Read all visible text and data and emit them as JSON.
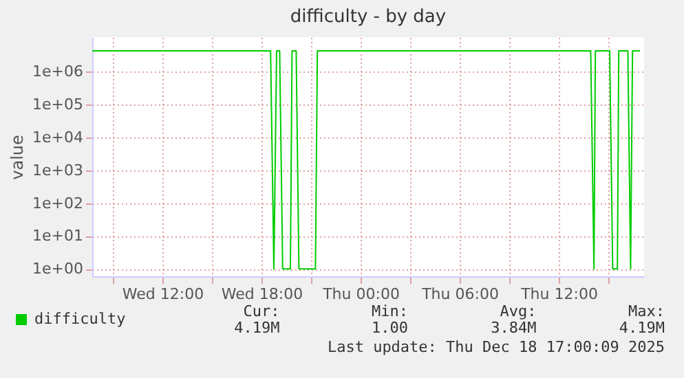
{
  "chart_data": {
    "type": "line",
    "title": "difficulty - by day",
    "ylabel": "value",
    "log": true,
    "grid": true,
    "legend": "bottom left",
    "xlim": [
      "2025-12-17T07:45",
      "2025-12-18T17:10"
    ],
    "xticks": [
      {
        "value": "2025-12-17T09:00",
        "label": null
      },
      {
        "value": "2025-12-17T12:00",
        "label": "Wed 12:00"
      },
      {
        "value": "2025-12-17T15:00",
        "label": null
      },
      {
        "value": "2025-12-17T18:00",
        "label": "Wed 18:00"
      },
      {
        "value": "2025-12-17T21:00",
        "label": null
      },
      {
        "value": "2025-12-18T00:00",
        "label": "Thu 00:00"
      },
      {
        "value": "2025-12-18T03:00",
        "label": null
      },
      {
        "value": "2025-12-18T06:00",
        "label": "Thu 06:00"
      },
      {
        "value": "2025-12-18T09:00",
        "label": null
      },
      {
        "value": "2025-12-18T12:00",
        "label": "Thu 12:00"
      },
      {
        "value": "2025-12-18T15:00",
        "label": null
      }
    ],
    "ylim": [
      0.6,
      11000000
    ],
    "yticks": [
      {
        "value": 1,
        "label": "1e+00"
      },
      {
        "value": 10,
        "label": "1e+01"
      },
      {
        "value": 100,
        "label": "1e+02"
      },
      {
        "value": 1000,
        "label": "1e+03"
      },
      {
        "value": 10000,
        "label": "1e+04"
      },
      {
        "value": 100000,
        "label": "1e+05"
      },
      {
        "value": 1000000,
        "label": "1e+06"
      }
    ],
    "series": [
      {
        "name": "difficulty",
        "color": "#00cc00",
        "x": [
          "2025-12-17T07:45",
          "2025-12-17T18:33",
          "2025-12-17T18:45",
          "2025-12-17T18:55",
          "2025-12-17T19:06",
          "2025-12-17T19:17",
          "2025-12-17T19:45",
          "2025-12-17T19:51",
          "2025-12-17T20:06",
          "2025-12-17T20:16",
          "2025-12-17T21:16",
          "2025-12-17T21:23",
          "2025-12-18T13:56",
          "2025-12-18T14:08",
          "2025-12-18T14:13",
          "2025-12-18T15:05",
          "2025-12-18T15:16",
          "2025-12-18T15:33",
          "2025-12-18T15:38",
          "2025-12-18T16:11",
          "2025-12-18T16:21",
          "2025-12-18T16:28",
          "2025-12-18T16:55"
        ],
        "values": [
          4190000,
          4190000,
          1,
          4190000,
          4190000,
          1,
          1,
          4190000,
          4190000,
          1,
          1,
          4190000,
          4190000,
          1,
          4190000,
          4190000,
          1,
          1,
          4190000,
          4190000,
          1,
          4190000,
          4190000
        ]
      }
    ],
    "annotations": [
      "Cur:",
      "4.19M",
      "Min:",
      "1.00",
      "Avg:",
      "3.84M",
      "Max:",
      "4.19M",
      "Last update: Thu Dec 18 17:00:09 2025"
    ]
  }
}
